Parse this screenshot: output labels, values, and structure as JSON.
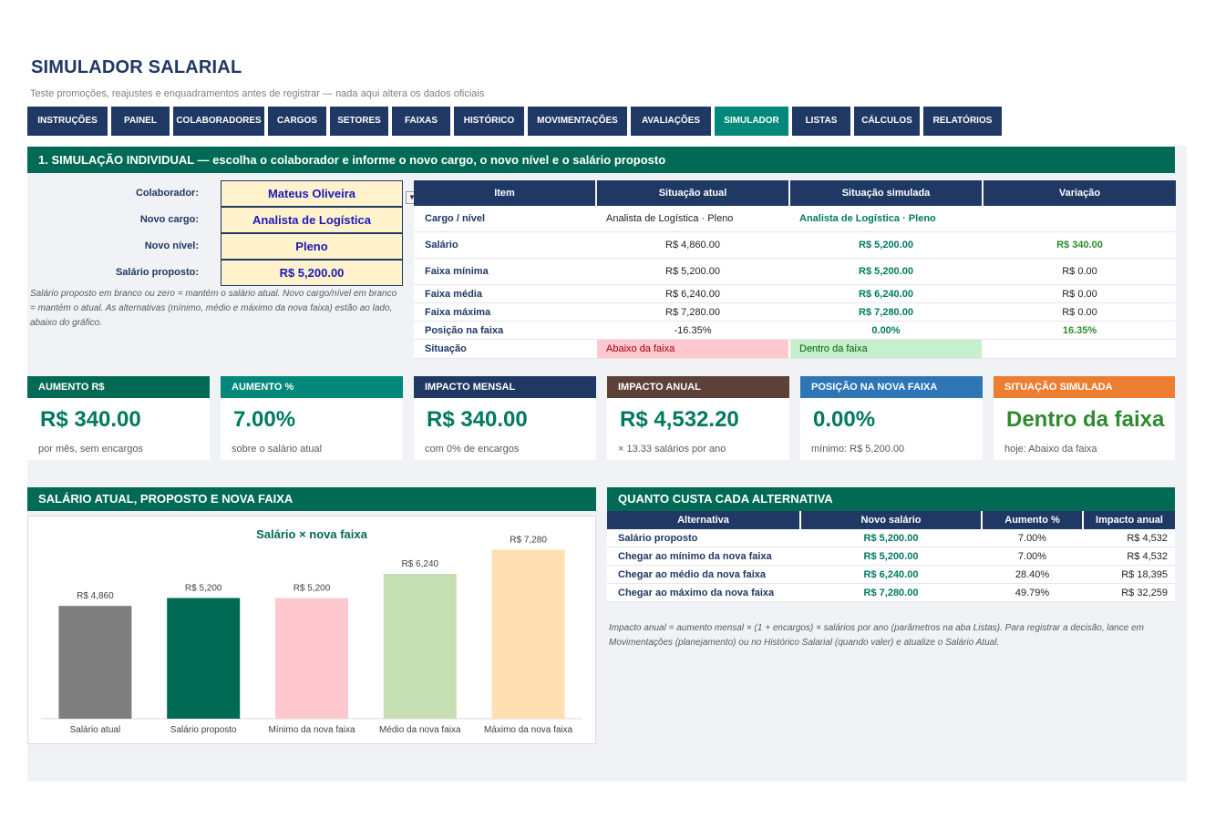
{
  "title": "SIMULADOR SALARIAL",
  "subtitle": "Teste promoções, reajustes e enquadramentos antes de registrar — nada aqui altera os dados oficiais",
  "tabs": [
    "INSTRUÇÕES",
    "PAINEL",
    "COLABORADORES",
    "CARGOS",
    "SETORES",
    "FAIXAS",
    "HISTÓRICO",
    "MOVIMENTAÇÕES",
    "AVALIAÇÕES",
    "SIMULADOR",
    "LISTAS",
    "CÁLCULOS",
    "RELATÓRIOS"
  ],
  "active_tab": "SIMULADOR",
  "section1": {
    "header": "1. SIMULAÇÃO INDIVIDUAL — escolha o colaborador e informe o novo cargo, o novo nível e o salário proposto",
    "fields": {
      "colaborador_label": "Colaborador:",
      "colaborador_value": "Mateus Oliveira",
      "cargo_label": "Novo cargo:",
      "cargo_value": "Analista de Logística",
      "nivel_label": "Novo nível:",
      "nivel_value": "Pleno",
      "salario_label": "Salário proposto:",
      "salario_value": "R$ 5,200.00"
    },
    "note": "Salário proposto em branco ou zero = mantém o salário atual. Novo cargo/nível em branco = mantém o atual. As alternativas (mínimo, médio e máximo da nova faixa) estão ao lado, abaixo do gráfico.",
    "table": {
      "headers": [
        "Item",
        "Situação atual",
        "Situação simulada",
        "Variação"
      ],
      "rows": [
        {
          "item": "Cargo / nível",
          "atual": "Analista de Logística · Pleno",
          "simulada": "Analista de Logística · Pleno",
          "variacao": ""
        },
        {
          "item": "Salário",
          "atual": "R$ 4,860.00",
          "simulada": "R$ 5,200.00",
          "variacao": "R$ 340.00"
        },
        {
          "item": "Faixa mínima",
          "atual": "R$ 5,200.00",
          "simulada": "R$ 5,200.00",
          "variacao": "R$ 0.00"
        },
        {
          "item": "Faixa média",
          "atual": "R$ 6,240.00",
          "simulada": "R$ 6,240.00",
          "variacao": "R$ 0.00"
        },
        {
          "item": "Faixa máxima",
          "atual": "R$ 7,280.00",
          "simulada": "R$ 7,280.00",
          "variacao": "R$ 0.00"
        },
        {
          "item": "Posição na faixa",
          "atual": "-16.35%",
          "simulada": "0.00%",
          "variacao": "16.35%"
        },
        {
          "item": "Situação",
          "atual": "Abaixo da faixa",
          "simulada": "Dentro da faixa",
          "variacao": ""
        }
      ]
    }
  },
  "cards": [
    {
      "title": "AUMENTO R$",
      "value": "R$ 340.00",
      "sub": "por mês, sem encargos",
      "color": "#006a54"
    },
    {
      "title": "AUMENTO %",
      "value": "7.00%",
      "sub": "sobre o salário atual",
      "color": "#00897b"
    },
    {
      "title": "IMPACTO MENSAL",
      "value": "R$ 340.00",
      "sub": "com 0% de encargos",
      "color": "#1f3864"
    },
    {
      "title": "IMPACTO ANUAL",
      "value": "R$ 4,532.20",
      "sub": "× 13.33 salários por ano",
      "color": "#5d4037"
    },
    {
      "title": "POSIÇÃO NA NOVA FAIXA",
      "value": "0.00%",
      "sub": "mínimo: R$ 5,200.00",
      "color": "#2e75b6"
    },
    {
      "title": "SITUAÇÃO SIMULADA",
      "value": "Dentro da faixa",
      "sub": "hoje: Abaixo da faixa",
      "color": "#ed7d31"
    }
  ],
  "chart_section_header": "SALÁRIO ATUAL, PROPOSTO E NOVA FAIXA",
  "chart_data": {
    "type": "bar",
    "title": "Salário × nova faixa",
    "categories": [
      "Salário atual",
      "Salário proposto",
      "Mínimo da nova faixa",
      "Médio da nova faixa",
      "Máximo da nova faixa"
    ],
    "values": [
      4860,
      5200,
      5200,
      6240,
      7280
    ],
    "data_labels": [
      "R$ 4,860",
      "R$ 5,200",
      "R$ 5,200",
      "R$ 6,240",
      "R$ 7,280"
    ],
    "colors": [
      "#7f7f7f",
      "#006a54",
      "#ffc7ce",
      "#c6e0b4",
      "#ffe0b2"
    ],
    "ylim": [
      0,
      8000
    ],
    "grid": false
  },
  "alternatives": {
    "header": "QUANTO CUSTA CADA ALTERNATIVA",
    "columns": [
      "Alternativa",
      "Novo salário",
      "Aumento %",
      "Impacto anual"
    ],
    "rows": [
      {
        "alt": "Salário proposto",
        "salario": "R$ 5,200.00",
        "pct": "7.00%",
        "impacto": "R$ 4,532"
      },
      {
        "alt": "Chegar ao mínimo da nova faixa",
        "salario": "R$ 5,200.00",
        "pct": "7.00%",
        "impacto": "R$ 4,532"
      },
      {
        "alt": "Chegar ao médio da nova faixa",
        "salario": "R$ 6,240.00",
        "pct": "28.40%",
        "impacto": "R$ 18,395"
      },
      {
        "alt": "Chegar ao máximo da nova faixa",
        "salario": "R$ 7,280.00",
        "pct": "49.79%",
        "impacto": "R$ 32,259"
      }
    ],
    "note": "Impacto anual = aumento mensal × (1 + encargos) × salários por ano (parâmetros na aba Listas). Para registrar a decisão, lance em Movimentações (planejamento) ou no Histórico Salarial (quando valer) e atualize o Salário Atual."
  }
}
